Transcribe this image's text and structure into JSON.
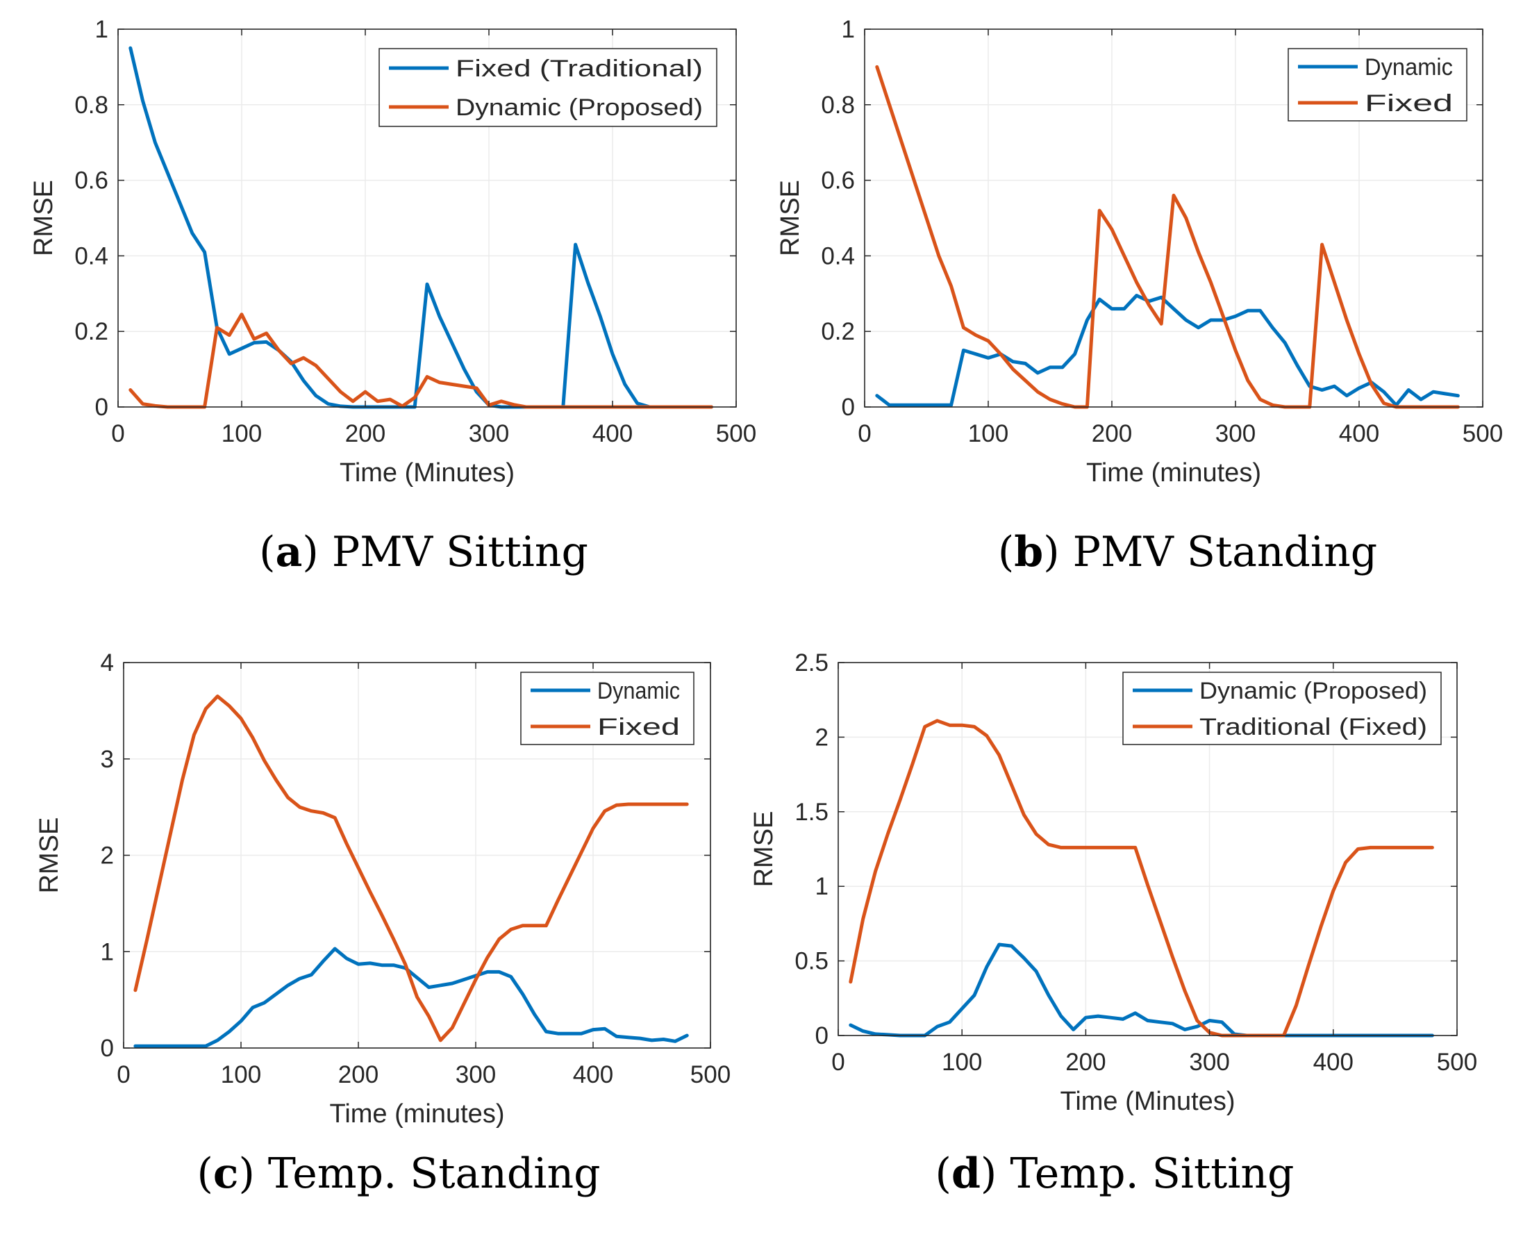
{
  "colors": {
    "blue": "#0072BD",
    "orange": "#D95319",
    "grid": "#EBEBEB",
    "axis": "#262626"
  },
  "chart_data": [
    {
      "id": "a",
      "type": "line",
      "caption": {
        "letter": "a",
        "text": "PMV Sitting"
      },
      "xlabel": "Time (Minutes)",
      "ylabel": "RMSE",
      "xlim": [
        0,
        500
      ],
      "ylim": [
        0,
        1
      ],
      "xticks": [
        0,
        100,
        200,
        300,
        400,
        500
      ],
      "yticks": [
        0,
        0.2,
        0.4,
        0.6,
        0.8,
        1
      ],
      "ytick_labels": [
        "0",
        "0.2",
        "0.4",
        "0.6",
        "0.8",
        "1"
      ],
      "grid": true,
      "legend_position": "top-right",
      "series": [
        {
          "name": "Fixed (Traditional)",
          "color": "#0072BD",
          "x": [
            10,
            20,
            30,
            40,
            50,
            60,
            70,
            80,
            90,
            100,
            110,
            120,
            130,
            140,
            150,
            160,
            170,
            180,
            190,
            200,
            210,
            220,
            230,
            240,
            250,
            260,
            270,
            280,
            290,
            300,
            310,
            320,
            330,
            340,
            350,
            360,
            370,
            380,
            390,
            400,
            410,
            420,
            430,
            440,
            450,
            460,
            470,
            480
          ],
          "y": [
            0.95,
            0.81,
            0.7,
            0.62,
            0.54,
            0.46,
            0.41,
            0.21,
            0.14,
            0.155,
            0.17,
            0.172,
            0.15,
            0.12,
            0.07,
            0.03,
            0.008,
            0.002,
            0,
            0,
            0,
            0,
            0,
            0,
            0.325,
            0.24,
            0.17,
            0.1,
            0.04,
            0.005,
            0,
            0,
            0,
            0,
            0,
            0,
            0.43,
            0.33,
            0.24,
            0.14,
            0.06,
            0.01,
            0,
            0,
            0,
            0,
            0,
            0
          ]
        },
        {
          "name": "Dynamic (Proposed)",
          "color": "#D95319",
          "x": [
            10,
            20,
            30,
            40,
            50,
            60,
            70,
            80,
            90,
            100,
            110,
            120,
            130,
            140,
            150,
            160,
            170,
            180,
            190,
            200,
            210,
            220,
            230,
            240,
            250,
            260,
            270,
            280,
            290,
            300,
            310,
            320,
            330,
            340,
            350,
            360,
            370,
            380,
            390,
            400,
            410,
            420,
            430,
            440,
            450,
            460,
            470,
            480
          ],
          "y": [
            0.045,
            0.008,
            0.003,
            0,
            0,
            0,
            0,
            0.21,
            0.19,
            0.245,
            0.18,
            0.195,
            0.15,
            0.115,
            0.13,
            0.11,
            0.075,
            0.04,
            0.015,
            0.04,
            0.015,
            0.02,
            0.002,
            0.025,
            0.08,
            0.065,
            0.06,
            0.055,
            0.05,
            0.005,
            0.015,
            0.006,
            0,
            0,
            0,
            0,
            0,
            0,
            0,
            0,
            0,
            0,
            0,
            0,
            0,
            0,
            0,
            0
          ]
        }
      ]
    },
    {
      "id": "b",
      "type": "line",
      "caption": {
        "letter": "b",
        "text": "PMV Standing"
      },
      "xlabel": "Time (minutes)",
      "ylabel": "RMSE",
      "xlim": [
        0,
        500
      ],
      "ylim": [
        0,
        1
      ],
      "xticks": [
        0,
        100,
        200,
        300,
        400,
        500
      ],
      "yticks": [
        0,
        0.2,
        0.4,
        0.6,
        0.8,
        1
      ],
      "ytick_labels": [
        "0",
        "0.2",
        "0.4",
        "0.6",
        "0.8",
        "1"
      ],
      "grid": true,
      "legend_position": "top-right",
      "series": [
        {
          "name": "Dynamic",
          "color": "#0072BD",
          "x": [
            10,
            20,
            30,
            40,
            50,
            60,
            70,
            80,
            90,
            100,
            110,
            120,
            130,
            140,
            150,
            160,
            170,
            180,
            190,
            200,
            210,
            220,
            230,
            240,
            250,
            260,
            270,
            280,
            290,
            300,
            310,
            320,
            330,
            340,
            350,
            360,
            370,
            380,
            390,
            400,
            410,
            420,
            430,
            440,
            450,
            460,
            470,
            480
          ],
          "y": [
            0.03,
            0.005,
            0.005,
            0.005,
            0.005,
            0.005,
            0.005,
            0.15,
            0.14,
            0.13,
            0.14,
            0.12,
            0.115,
            0.09,
            0.105,
            0.105,
            0.14,
            0.23,
            0.285,
            0.26,
            0.26,
            0.295,
            0.28,
            0.29,
            0.26,
            0.23,
            0.21,
            0.23,
            0.23,
            0.24,
            0.255,
            0.255,
            0.21,
            0.17,
            0.11,
            0.055,
            0.045,
            0.055,
            0.03,
            0.05,
            0.065,
            0.04,
            0.005,
            0.045,
            0.02,
            0.04,
            0.035,
            0.03
          ]
        },
        {
          "name": "Fixed",
          "color": "#D95319",
          "x": [
            10,
            20,
            30,
            40,
            50,
            60,
            70,
            80,
            90,
            100,
            110,
            120,
            130,
            140,
            150,
            160,
            170,
            180,
            190,
            200,
            210,
            220,
            230,
            240,
            250,
            260,
            270,
            280,
            290,
            300,
            310,
            320,
            330,
            340,
            350,
            360,
            370,
            380,
            390,
            400,
            410,
            420,
            430,
            440,
            450,
            460,
            470,
            480
          ],
          "y": [
            0.9,
            0.8,
            0.7,
            0.6,
            0.5,
            0.4,
            0.32,
            0.21,
            0.19,
            0.175,
            0.14,
            0.1,
            0.07,
            0.04,
            0.02,
            0.008,
            0,
            0,
            0.52,
            0.47,
            0.4,
            0.33,
            0.27,
            0.22,
            0.56,
            0.5,
            0.41,
            0.33,
            0.24,
            0.15,
            0.07,
            0.02,
            0.005,
            0,
            0,
            0,
            0.43,
            0.33,
            0.23,
            0.14,
            0.06,
            0.01,
            0,
            0,
            0,
            0,
            0,
            0
          ]
        }
      ]
    },
    {
      "id": "c",
      "type": "line",
      "caption": {
        "letter": "c",
        "text": "Temp. Standing"
      },
      "xlabel": "Time (minutes)",
      "ylabel": "RMSE",
      "xlim": [
        0,
        500
      ],
      "ylim": [
        0,
        4
      ],
      "xticks": [
        0,
        100,
        200,
        300,
        400,
        500
      ],
      "yticks": [
        0,
        1,
        2,
        3,
        4
      ],
      "ytick_labels": [
        "0",
        "1",
        "2",
        "3",
        "4"
      ],
      "grid": true,
      "legend_position": "top-right",
      "series": [
        {
          "name": "Dynamic",
          "color": "#0072BD",
          "x": [
            10,
            20,
            30,
            40,
            50,
            60,
            70,
            80,
            90,
            100,
            110,
            120,
            130,
            140,
            150,
            160,
            170,
            180,
            190,
            200,
            210,
            220,
            230,
            240,
            250,
            260,
            270,
            280,
            290,
            300,
            310,
            320,
            330,
            340,
            350,
            360,
            370,
            380,
            390,
            400,
            410,
            420,
            430,
            440,
            450,
            460,
            470,
            480
          ],
          "y": [
            0.02,
            0.02,
            0.02,
            0.02,
            0.02,
            0.02,
            0.02,
            0.08,
            0.17,
            0.28,
            0.42,
            0.47,
            0.56,
            0.65,
            0.72,
            0.76,
            0.9,
            1.03,
            0.93,
            0.87,
            0.88,
            0.86,
            0.86,
            0.83,
            0.73,
            0.63,
            0.65,
            0.67,
            0.71,
            0.75,
            0.79,
            0.79,
            0.74,
            0.56,
            0.35,
            0.17,
            0.15,
            0.15,
            0.15,
            0.19,
            0.2,
            0.12,
            0.11,
            0.1,
            0.08,
            0.09,
            0.07,
            0.13
          ]
        },
        {
          "name": "Fixed",
          "color": "#D95319",
          "x": [
            10,
            20,
            30,
            40,
            50,
            60,
            70,
            80,
            90,
            100,
            110,
            120,
            130,
            140,
            150,
            160,
            170,
            180,
            190,
            200,
            210,
            220,
            230,
            240,
            250,
            260,
            270,
            280,
            290,
            300,
            310,
            320,
            330,
            340,
            350,
            360,
            370,
            380,
            390,
            400,
            410,
            420,
            430,
            440,
            450,
            460,
            470,
            480
          ],
          "y": [
            0.6,
            1.13,
            1.68,
            2.23,
            2.78,
            3.25,
            3.52,
            3.65,
            3.55,
            3.42,
            3.22,
            2.98,
            2.78,
            2.6,
            2.5,
            2.46,
            2.44,
            2.39,
            2.12,
            1.87,
            1.62,
            1.38,
            1.13,
            0.87,
            0.53,
            0.33,
            0.08,
            0.21,
            0.46,
            0.71,
            0.94,
            1.13,
            1.23,
            1.27,
            1.27,
            1.27,
            1.53,
            1.78,
            2.03,
            2.28,
            2.46,
            2.52,
            2.53,
            2.53,
            2.53,
            2.53,
            2.53,
            2.53
          ]
        }
      ]
    },
    {
      "id": "d",
      "type": "line",
      "caption": {
        "letter": "d",
        "text": "Temp. Sitting"
      },
      "xlabel": "Time (Minutes)",
      "ylabel": "RMSE",
      "xlim": [
        0,
        500
      ],
      "ylim": [
        0,
        2.5
      ],
      "xticks": [
        0,
        100,
        200,
        300,
        400,
        500
      ],
      "yticks": [
        0,
        0.5,
        1,
        1.5,
        2,
        2.5
      ],
      "ytick_labels": [
        "0",
        "0.5",
        "1",
        "1.5",
        "2",
        "2.5"
      ],
      "grid": true,
      "legend_position": "top-right",
      "series": [
        {
          "name": "Dynamic (Proposed)",
          "color": "#0072BD",
          "x": [
            10,
            20,
            30,
            40,
            50,
            60,
            70,
            80,
            90,
            100,
            110,
            120,
            130,
            140,
            150,
            160,
            170,
            180,
            190,
            200,
            210,
            220,
            230,
            240,
            250,
            260,
            270,
            280,
            290,
            300,
            310,
            320,
            330,
            340,
            350,
            360,
            370,
            380,
            390,
            400,
            410,
            420,
            430,
            440,
            450,
            460,
            470,
            480
          ],
          "y": [
            0.07,
            0.03,
            0.01,
            0.005,
            0,
            0,
            0,
            0.06,
            0.09,
            0.18,
            0.27,
            0.46,
            0.61,
            0.6,
            0.52,
            0.43,
            0.27,
            0.13,
            0.04,
            0.12,
            0.13,
            0.12,
            0.11,
            0.15,
            0.1,
            0.09,
            0.08,
            0.04,
            0.06,
            0.1,
            0.09,
            0.01,
            0,
            0,
            0,
            0,
            0,
            0,
            0,
            0,
            0,
            0,
            0,
            0,
            0,
            0,
            0,
            0
          ]
        },
        {
          "name": "Traditional (Fixed)",
          "color": "#D95319",
          "x": [
            10,
            20,
            30,
            40,
            50,
            60,
            70,
            80,
            90,
            100,
            110,
            120,
            130,
            140,
            150,
            160,
            170,
            180,
            190,
            200,
            210,
            220,
            230,
            240,
            250,
            260,
            270,
            280,
            290,
            300,
            310,
            320,
            330,
            340,
            350,
            360,
            370,
            380,
            390,
            400,
            410,
            420,
            430,
            440,
            450,
            460,
            470,
            480
          ],
          "y": [
            0.36,
            0.78,
            1.1,
            1.35,
            1.58,
            1.82,
            2.07,
            2.11,
            2.08,
            2.08,
            2.07,
            2.01,
            1.88,
            1.68,
            1.48,
            1.35,
            1.28,
            1.26,
            1.26,
            1.26,
            1.26,
            1.26,
            1.26,
            1.26,
            1.01,
            0.77,
            0.53,
            0.3,
            0.1,
            0.02,
            0,
            0,
            0,
            0,
            0,
            0,
            0.2,
            0.47,
            0.73,
            0.97,
            1.16,
            1.25,
            1.26,
            1.26,
            1.26,
            1.26,
            1.26,
            1.26
          ]
        }
      ]
    }
  ]
}
